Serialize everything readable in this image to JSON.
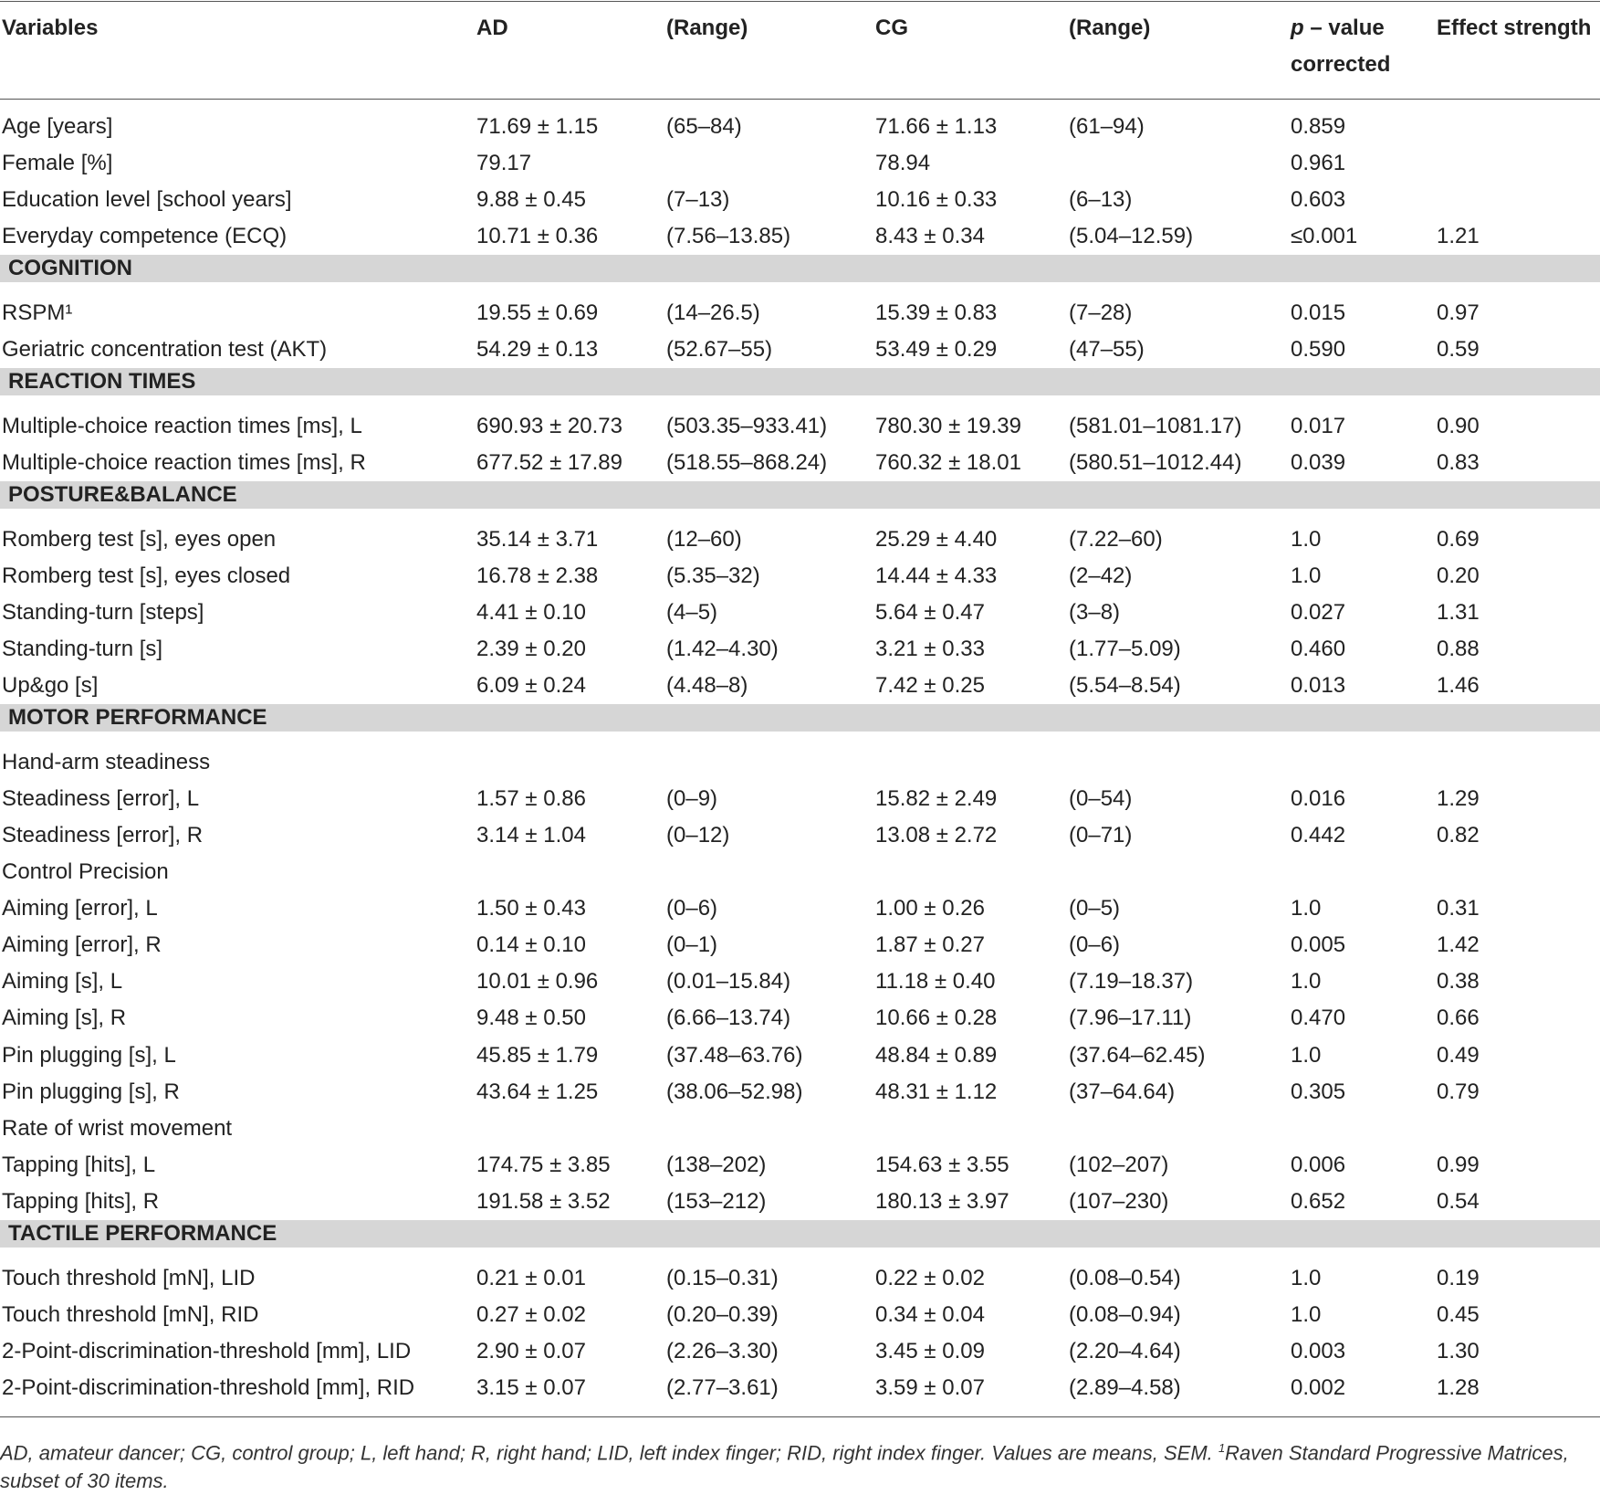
{
  "table": {
    "header": [
      "Variables",
      "AD",
      "(Range)",
      "CG",
      "(Range)",
      [
        "p",
        "– value",
        "corrected"
      ],
      "Effect strength"
    ],
    "rows": [
      {
        "cells": [
          "Age [years]",
          "71.69 ± 1.15",
          "(65–84)",
          "71.66 ± 1.13",
          "(61–94)",
          "0.859",
          null
        ]
      },
      {
        "cells": [
          "Female [%]",
          "79.17",
          null,
          "78.94",
          null,
          "0.961",
          null
        ]
      },
      {
        "cells": [
          "Education level [school years]",
          "9.88 ± 0.45",
          "(7–13)",
          "10.16 ± 0.33",
          "(6–13)",
          "0.603",
          null
        ]
      },
      {
        "cells": [
          "Everyday competence (ECQ)",
          "10.71 ± 0.36",
          "(7.56–13.85)",
          "8.43 ± 0.34",
          "(5.04–12.59)",
          "≤0.001",
          "1.21"
        ]
      },
      {
        "section": "COGNITION"
      },
      {
        "cells": [
          "RSPM¹",
          "19.55 ± 0.69",
          "(14–26.5)",
          "15.39 ± 0.83",
          "(7–28)",
          "0.015",
          "0.97"
        ]
      },
      {
        "cells": [
          "Geriatric concentration test (AKT)",
          "54.29 ± 0.13",
          "(52.67–55)",
          "53.49 ± 0.29",
          "(47–55)",
          "0.590",
          "0.59"
        ]
      },
      {
        "section": "REACTION TIMES"
      },
      {
        "cells": [
          "Multiple-choice reaction times [ms], L",
          "690.93 ± 20.73",
          "(503.35–933.41)",
          "780.30 ± 19.39",
          "(581.01–1081.17)",
          "0.017",
          "0.90"
        ]
      },
      {
        "cells": [
          "Multiple-choice reaction times [ms], R",
          "677.52 ± 17.89",
          "(518.55–868.24)",
          "760.32 ± 18.01",
          "(580.51–1012.44)",
          "0.039",
          "0.83"
        ]
      },
      {
        "section": "POSTURE&BALANCE"
      },
      {
        "cells": [
          "Romberg test [s], eyes open",
          "35.14 ± 3.71",
          "(12–60)",
          "25.29 ± 4.40",
          "(7.22–60)",
          "1.0",
          "0.69"
        ]
      },
      {
        "cells": [
          "Romberg test [s], eyes closed",
          "16.78 ± 2.38",
          "(5.35–32)",
          "14.44 ± 4.33",
          "(2–42)",
          "1.0",
          "0.20"
        ]
      },
      {
        "cells": [
          "Standing-turn [steps]",
          "4.41 ± 0.10",
          "(4–5)",
          "5.64 ± 0.47",
          "(3–8)",
          "0.027",
          "1.31"
        ]
      },
      {
        "cells": [
          "Standing-turn [s]",
          "2.39 ± 0.20",
          "(1.42–4.30)",
          "3.21 ± 0.33",
          "(1.77–5.09)",
          "0.460",
          "0.88"
        ]
      },
      {
        "cells": [
          "Up&go [s]",
          "6.09 ± 0.24",
          "(4.48–8)",
          "7.42 ± 0.25",
          "(5.54–8.54)",
          "0.013",
          "1.46"
        ]
      },
      {
        "section": "MOTOR PERFORMANCE"
      },
      {
        "cells": [
          "Hand-arm steadiness",
          null,
          null,
          null,
          null,
          null,
          null
        ]
      },
      {
        "cells": [
          "Steadiness [error], L",
          "1.57 ± 0.86",
          "(0–9)",
          "15.82 ± 2.49",
          "(0–54)",
          "0.016",
          "1.29"
        ]
      },
      {
        "cells": [
          "Steadiness [error], R",
          "3.14 ± 1.04",
          "(0–12)",
          "13.08 ± 2.72",
          "(0–71)",
          "0.442",
          "0.82"
        ]
      },
      {
        "cells": [
          "Control Precision",
          null,
          null,
          null,
          null,
          null,
          null
        ]
      },
      {
        "cells": [
          "Aiming [error], L",
          "1.50 ± 0.43",
          "(0–6)",
          "1.00 ± 0.26",
          "(0–5)",
          "1.0",
          "0.31"
        ]
      },
      {
        "cells": [
          "Aiming [error], R",
          "0.14 ± 0.10",
          "(0–1)",
          "1.87 ± 0.27",
          "(0–6)",
          "0.005",
          "1.42"
        ]
      },
      {
        "cells": [
          "Aiming [s], L",
          "10.01 ± 0.96",
          "(0.01–15.84)",
          "11.18 ± 0.40",
          "(7.19–18.37)",
          "1.0",
          "0.38"
        ]
      },
      {
        "cells": [
          "Aiming [s], R",
          "9.48 ± 0.50",
          "(6.66–13.74)",
          "10.66 ± 0.28",
          "(7.96–17.11)",
          "0.470",
          "0.66"
        ]
      },
      {
        "cells": [
          "Pin plugging [s], L",
          "45.85 ± 1.79",
          "(37.48–63.76)",
          "48.84 ± 0.89",
          "(37.64–62.45)",
          "1.0",
          "0.49"
        ]
      },
      {
        "cells": [
          "Pin plugging [s], R",
          "43.64 ± 1.25",
          "(38.06–52.98)",
          "48.31 ± 1.12",
          "(37–64.64)",
          "0.305",
          "0.79"
        ]
      },
      {
        "cells": [
          "Rate of wrist movement",
          null,
          null,
          null,
          null,
          null,
          null
        ]
      },
      {
        "cells": [
          "Tapping [hits], L",
          "174.75 ± 3.85",
          "(138–202)",
          "154.63 ± 3.55",
          "(102–207)",
          "0.006",
          "0.99"
        ]
      },
      {
        "cells": [
          "Tapping [hits], R",
          "191.58 ± 3.52",
          "(153–212)",
          "180.13 ± 3.97",
          "(107–230)",
          "0.652",
          "0.54"
        ]
      },
      {
        "section": "TACTILE PERFORMANCE"
      },
      {
        "cells": [
          "Touch threshold [mN], LID",
          "0.21 ± 0.01",
          "(0.15–0.31)",
          "0.22 ± 0.02",
          "(0.08–0.54)",
          "1.0",
          "0.19"
        ]
      },
      {
        "cells": [
          "Touch threshold [mN], RID",
          "0.27 ± 0.02",
          "(0.20–0.39)",
          "0.34 ± 0.04",
          "(0.08–0.94)",
          "1.0",
          "0.45"
        ]
      },
      {
        "cells": [
          "2-Point-discrimination-threshold [mm], LID",
          "2.90 ± 0.07",
          "(2.26–3.30)",
          "3.45 ± 0.09",
          "(2.20–4.64)",
          "0.003",
          "1.30"
        ]
      },
      {
        "cells": [
          "2-Point-discrimination-threshold [mm], RID",
          "3.15 ± 0.07",
          "(2.77–3.61)",
          "3.59 ± 0.07",
          "(2.89–4.58)",
          "0.002",
          "1.28"
        ]
      }
    ],
    "footnote": {
      "text": "AD, amateur dancer; CG, control group; L, left hand; R, right hand; LID, left index finger; RID, right index finger. Values are means, SEM.",
      "sup": "1",
      "note": "Raven Standard Progressive Matrices, subset of 30 items."
    }
  }
}
